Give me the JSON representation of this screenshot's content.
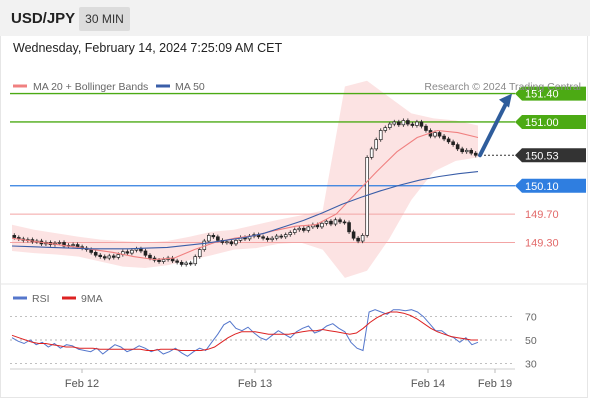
{
  "header": {
    "symbol": "USD/JPY",
    "interval": "30 MIN",
    "datetime": "Wednesday, February 14, 2024 7:25:09 AM CET"
  },
  "legend": {
    "ma20_bb": "MA 20 + Bollinger Bands",
    "ma50": "MA 50",
    "credit": "Research © 2024 Trading Central",
    "rsi": "RSI",
    "ma9": "9MA"
  },
  "colors": {
    "bullish": "#2e9e3e",
    "bearish": "#d23a36",
    "ma20": "#f08080",
    "ma50": "#3a5ea8",
    "resistance": "#4caa14",
    "support": "#2f7ee0",
    "secondary_support": "#e26a6a",
    "last_price_tag": "#333333",
    "arrow": "#2f5d9c",
    "rsi": "#5577cc",
    "rsi_ma9": "#dd2222"
  },
  "chart_data": [
    {
      "type": "candlestick",
      "title": "USD/JPY",
      "interval": "30 MIN",
      "x_labels": [
        "Feb 12",
        "Feb 13",
        "Feb 14",
        "Feb 19"
      ],
      "ylim": [
        148.7,
        151.62
      ],
      "price_levels": [
        {
          "label": "151.40",
          "value": 151.4,
          "kind": "resistance"
        },
        {
          "label": "151.00",
          "value": 151.0,
          "kind": "resistance"
        },
        {
          "label": "150.53",
          "value": 150.53,
          "kind": "last_price"
        },
        {
          "label": "150.10",
          "value": 150.1,
          "kind": "pivot_support"
        },
        {
          "label": "149.70",
          "value": 149.7,
          "kind": "support"
        },
        {
          "label": "149.30",
          "value": 149.3,
          "kind": "support"
        }
      ],
      "close": [
        149.37,
        149.35,
        149.33,
        149.34,
        149.31,
        149.32,
        149.28,
        149.3,
        149.27,
        149.29,
        149.3,
        149.25,
        149.26,
        149.27,
        149.24,
        149.22,
        149.2,
        149.16,
        149.12,
        149.1,
        149.08,
        149.11,
        149.09,
        149.13,
        149.17,
        149.15,
        149.19,
        149.21,
        149.18,
        149.12,
        149.08,
        149.05,
        149.03,
        149.06,
        149.08,
        149.04,
        149.02,
        148.99,
        149.01,
        149.0,
        149.1,
        149.2,
        149.32,
        149.4,
        149.38,
        149.33,
        149.3,
        149.31,
        149.28,
        149.33,
        149.37,
        149.35,
        149.39,
        149.41,
        149.38,
        149.36,
        149.34,
        149.36,
        149.39,
        149.38,
        149.41,
        149.44,
        149.48,
        149.5,
        149.47,
        149.52,
        149.55,
        149.52,
        149.57,
        149.6,
        149.56,
        149.62,
        149.59,
        149.58,
        149.45,
        149.36,
        149.32,
        149.4,
        150.5,
        150.62,
        150.75,
        150.88,
        150.92,
        150.97,
        151.0,
        150.96,
        151.02,
        150.97,
        150.95,
        151.0,
        150.94,
        150.88,
        150.8,
        150.85,
        150.8,
        150.76,
        150.72,
        150.68,
        150.62,
        150.58,
        150.6,
        150.56,
        150.53
      ],
      "ma50": [
        149.25,
        149.24,
        149.23,
        149.22,
        149.21,
        149.21,
        149.21,
        149.22,
        149.23,
        149.26,
        149.29,
        149.33,
        149.37,
        149.43,
        149.52,
        149.61,
        149.72,
        149.84,
        149.94,
        150.03,
        150.11,
        150.18,
        150.23,
        150.27,
        150.3
      ],
      "ma20": [
        149.36,
        149.32,
        149.28,
        149.24,
        149.2,
        149.16,
        149.1,
        149.06,
        149.08,
        149.2,
        149.3,
        149.36,
        149.4,
        149.47,
        149.53,
        149.55,
        149.7,
        150.0,
        150.3,
        150.58,
        150.78,
        150.88,
        150.85,
        150.78
      ],
      "bollinger_upper": [
        149.55,
        149.48,
        149.43,
        149.38,
        149.34,
        149.32,
        149.3,
        149.32,
        149.38,
        149.45,
        149.48,
        149.55,
        149.62,
        149.68,
        149.75,
        151.5,
        151.58,
        151.35,
        151.12,
        151.05,
        151.02,
        150.95
      ],
      "bollinger_lower": [
        149.18,
        149.15,
        149.13,
        149.1,
        149.03,
        148.96,
        148.94,
        148.98,
        149.05,
        149.12,
        149.2,
        149.22,
        149.28,
        149.3,
        149.2,
        148.8,
        148.9,
        149.35,
        149.9,
        150.3,
        150.45,
        150.5
      ],
      "forecast_arrow": {
        "from": 150.53,
        "to": 151.4
      }
    },
    {
      "type": "line",
      "title": "RSI",
      "ylim": [
        20,
        80
      ],
      "yticks": [
        30,
        50,
        70
      ],
      "series": [
        {
          "name": "RSI",
          "values": [
            52,
            49,
            47,
            50,
            46,
            48,
            44,
            47,
            43,
            46,
            45,
            42,
            41,
            40,
            43,
            38,
            42,
            46,
            44,
            40,
            42,
            45,
            43,
            40,
            42,
            38,
            40,
            43,
            39,
            36,
            40,
            43,
            41,
            48,
            55,
            63,
            66,
            60,
            58,
            61,
            56,
            52,
            50,
            54,
            58,
            55,
            52,
            57,
            60,
            62,
            56,
            58,
            62,
            64,
            60,
            57,
            48,
            43,
            41,
            74,
            76,
            74,
            72,
            76,
            76,
            75,
            76,
            74,
            70,
            64,
            58,
            58,
            54,
            52,
            48,
            52,
            46,
            48
          ]
        },
        {
          "name": "9MA",
          "values": [
            54,
            52,
            50,
            48,
            47,
            47,
            46,
            45,
            44,
            44,
            43,
            43,
            43,
            42,
            42,
            42,
            42,
            42,
            42,
            42,
            41,
            41,
            42,
            42,
            42,
            41,
            41,
            41,
            41,
            42,
            44,
            48,
            52,
            55,
            57,
            57,
            57,
            56,
            55,
            55,
            55,
            55,
            56,
            57,
            58,
            58,
            59,
            58,
            57,
            56,
            55,
            56,
            60,
            65,
            69,
            72,
            74,
            74,
            73,
            71,
            68,
            64,
            60,
            57,
            55,
            53,
            52,
            51,
            50,
            50
          ]
        }
      ]
    }
  ]
}
